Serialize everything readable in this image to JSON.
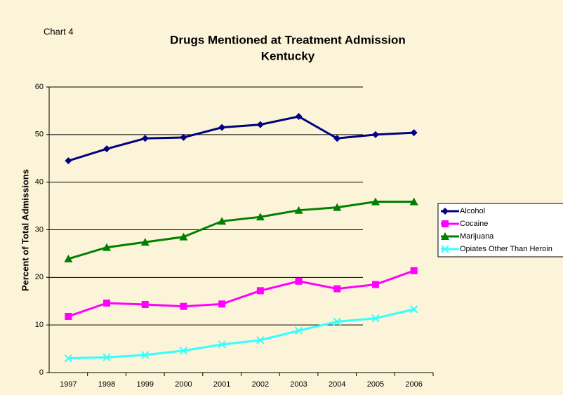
{
  "chart_data": {
    "type": "line",
    "annotation": "Chart 4",
    "title": "Drugs Mentioned at Treatment Admission",
    "subtitle": "Kentucky",
    "y_label": "Percent of Total Admissions",
    "categories": [
      "1997",
      "1998",
      "1999",
      "2000",
      "2001",
      "2002",
      "2003",
      "2004",
      "2005",
      "2006"
    ],
    "series": [
      {
        "name": "Alcohol",
        "color": "#000080",
        "marker": "diamond",
        "values": [
          44.5,
          47,
          49.2,
          49.4,
          51.5,
          52.1,
          53.8,
          49.2,
          50,
          50.4
        ]
      },
      {
        "name": "Cocaine",
        "color": "#ff00ff",
        "marker": "square",
        "values": [
          11.8,
          14.6,
          14.3,
          13.9,
          14.4,
          17.2,
          19.2,
          17.6,
          18.5,
          21.4
        ]
      },
      {
        "name": "Marijuana",
        "color": "#008000",
        "marker": "triangle",
        "values": [
          23.9,
          26.3,
          27.4,
          28.5,
          31.8,
          32.7,
          34.1,
          34.7,
          35.9,
          35.9
        ]
      },
      {
        "name": "Opiates Other Than Heroin",
        "color": "#33ffff",
        "marker": "x",
        "values": [
          3.0,
          3.2,
          3.7,
          4.6,
          5.9,
          6.8,
          8.8,
          10.7,
          11.4,
          13.3
        ]
      }
    ],
    "ylim": [
      0,
      60
    ],
    "yticks": [
      0,
      10,
      20,
      30,
      40,
      50,
      60
    ],
    "grid": true,
    "legend": "right"
  }
}
